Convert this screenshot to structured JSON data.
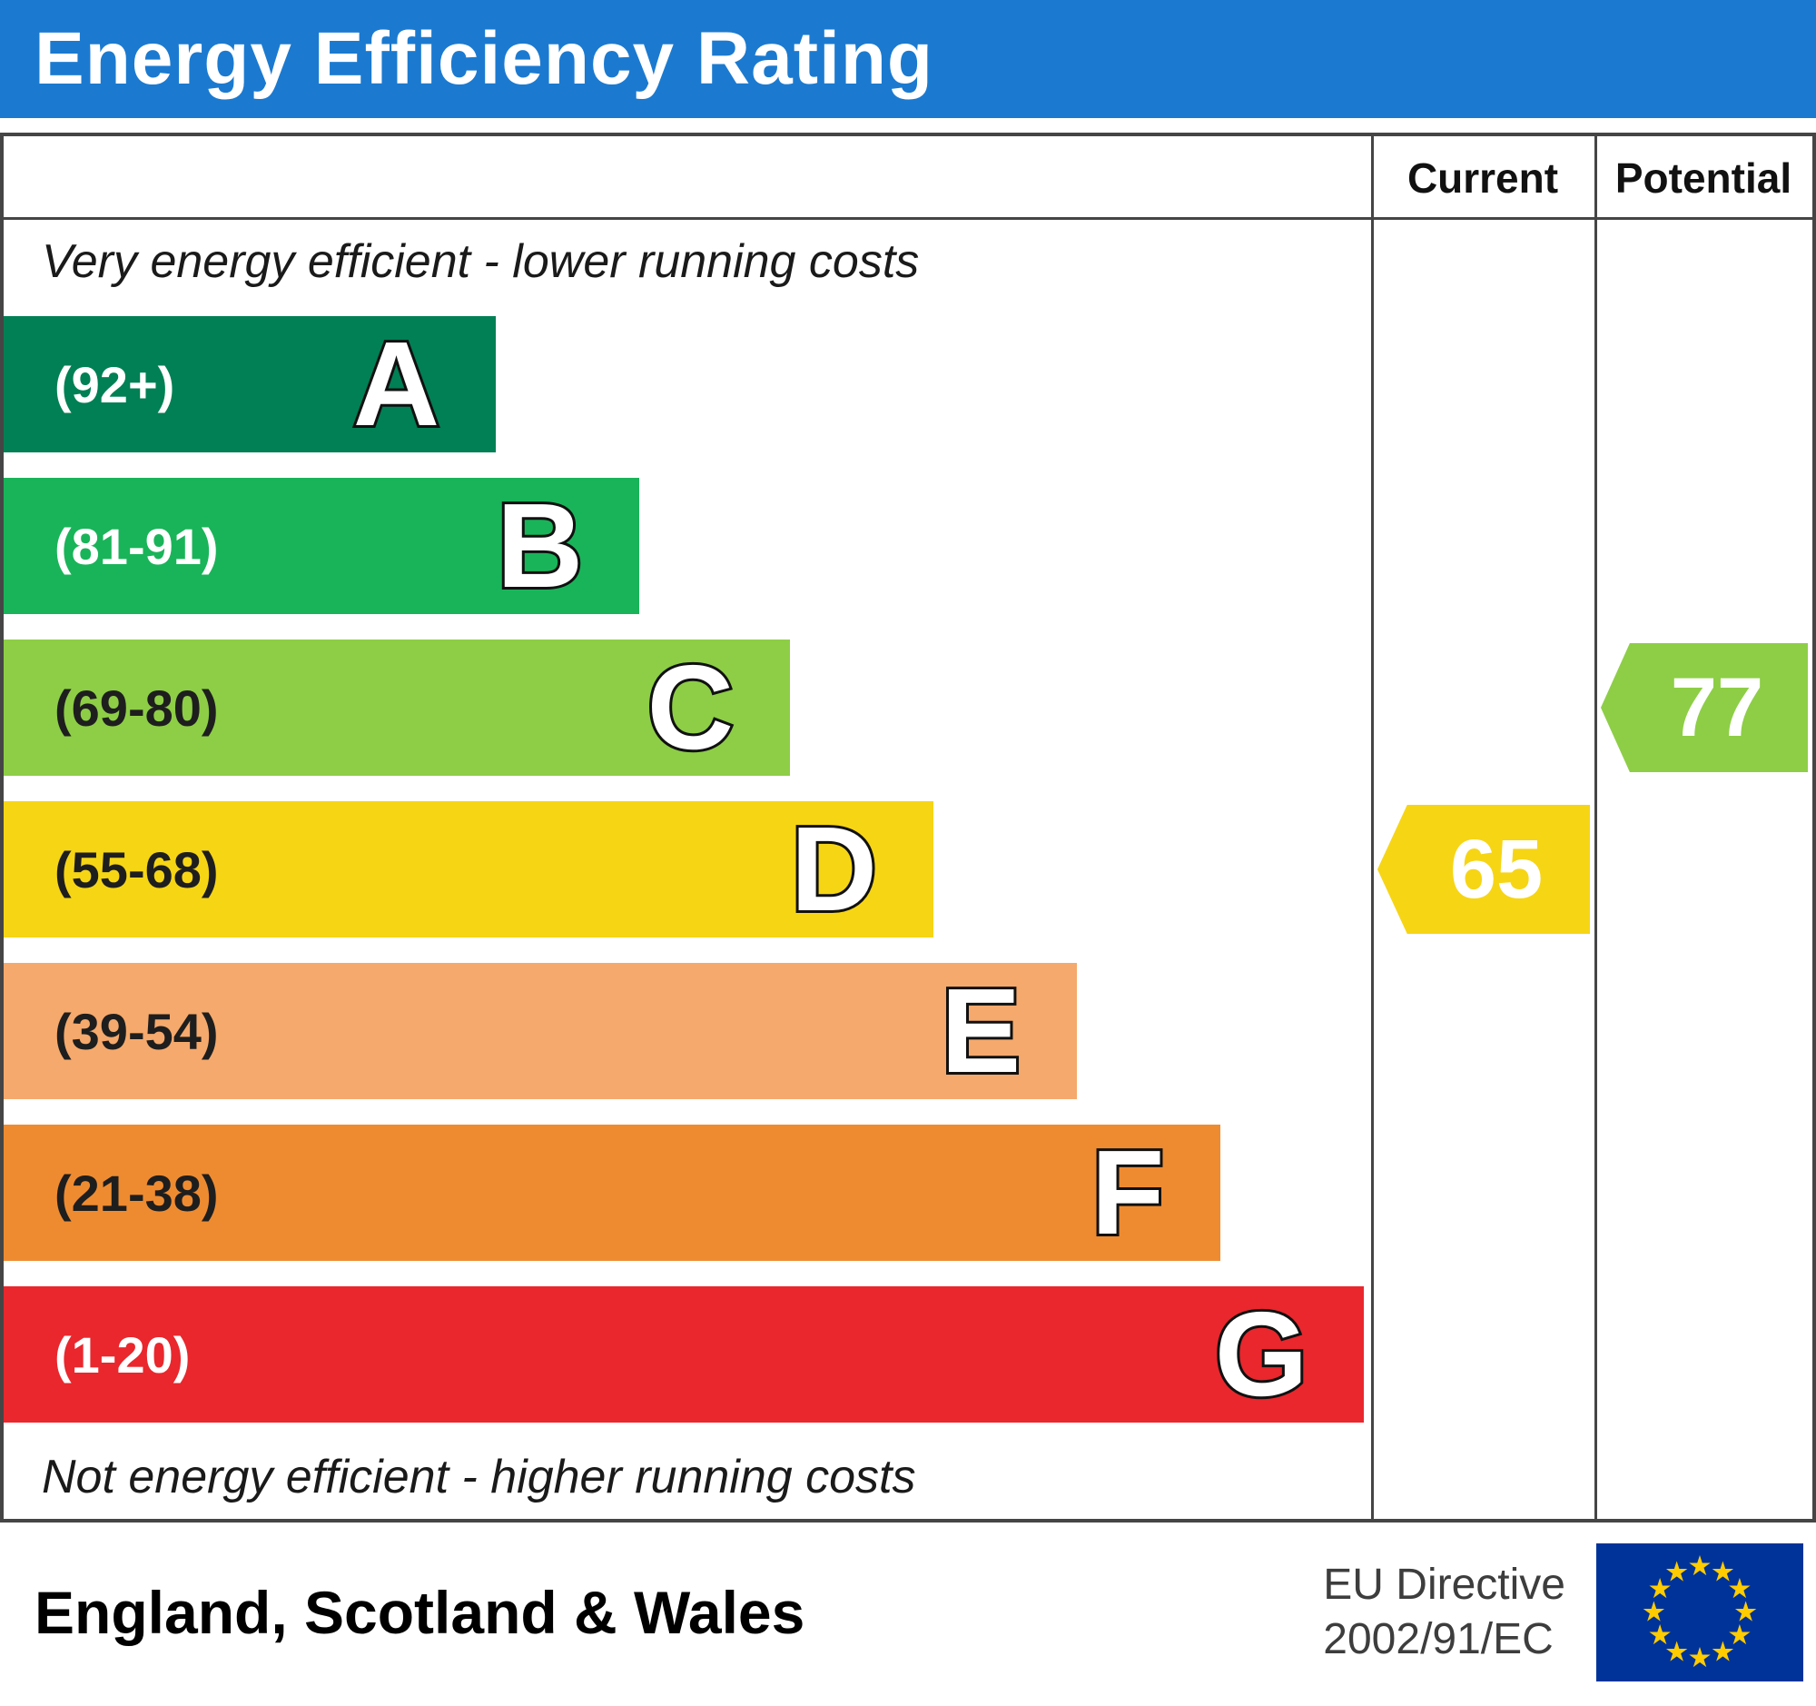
{
  "header": {
    "title": "Energy Efficiency Rating",
    "bg_color": "#1b7ad0",
    "text_color": "#ffffff"
  },
  "chart_data": {
    "type": "bar",
    "title": "Energy Efficiency Rating",
    "columns": {
      "current": "Current",
      "potential": "Potential"
    },
    "top_annotation": "Very energy efficient - lower running costs",
    "bottom_annotation": "Not energy efficient - higher running costs",
    "bands": [
      {
        "letter": "A",
        "range": "(92+)",
        "color": "#008054",
        "label_color": "#ffffff",
        "width_pct": 36
      },
      {
        "letter": "B",
        "range": "(81-91)",
        "color": "#19b459",
        "label_color": "#ffffff",
        "width_pct": 46.5
      },
      {
        "letter": "C",
        "range": "(69-80)",
        "color": "#8dce46",
        "label_color": "#1e1e1e",
        "width_pct": 57.5
      },
      {
        "letter": "D",
        "range": "(55-68)",
        "color": "#f6d515",
        "label_color": "#1e1e1e",
        "width_pct": 68
      },
      {
        "letter": "E",
        "range": "(39-54)",
        "color": "#f5a96c",
        "label_color": "#1e1e1e",
        "width_pct": 78.5
      },
      {
        "letter": "F",
        "range": "(21-38)",
        "color": "#ee8b31",
        "label_color": "#1e1e1e",
        "width_pct": 89
      },
      {
        "letter": "G",
        "range": "(1-20)",
        "color": "#e9272d",
        "label_color": "#ffffff",
        "width_pct": 99.5
      }
    ],
    "current": {
      "value": 65,
      "band": "D",
      "band_index": 3,
      "color": "#f6d515"
    },
    "potential": {
      "value": 77,
      "band": "C",
      "band_index": 2,
      "color": "#8dce46"
    }
  },
  "footer": {
    "region": "England, Scotland & Wales",
    "directive_line1": "EU Directive",
    "directive_line2": "2002/91/EC",
    "flag": {
      "field_color": "#003399",
      "star_color": "#ffcc00"
    }
  }
}
